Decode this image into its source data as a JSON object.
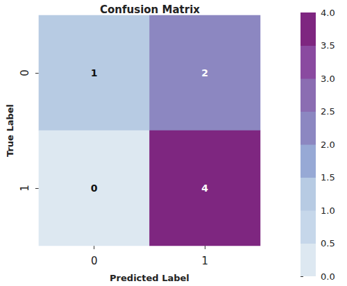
{
  "chart_data": {
    "type": "heatmap",
    "title": "Confusion Matrix",
    "x_label": "Predicted Label",
    "y_label": "True Label",
    "x_categories": [
      "0",
      "1"
    ],
    "y_categories": [
      "0",
      "1"
    ],
    "cells": [
      [
        1,
        2
      ],
      [
        0,
        4
      ]
    ],
    "data_labels": true,
    "colorbar": {
      "range": [
        0,
        4
      ],
      "ticks": [
        {
          "value": 0,
          "label": "0.0"
        },
        {
          "value": 0.5,
          "label": "0.5"
        },
        {
          "value": 1,
          "label": "1.0"
        },
        {
          "value": 1.5,
          "label": "1.5"
        },
        {
          "value": 2,
          "label": "2.0"
        },
        {
          "value": 2.5,
          "label": "2.5"
        },
        {
          "value": 3,
          "label": "3.0"
        },
        {
          "value": 3.5,
          "label": "3.5"
        },
        {
          "value": 4,
          "label": "4.0"
        }
      ]
    }
  }
}
